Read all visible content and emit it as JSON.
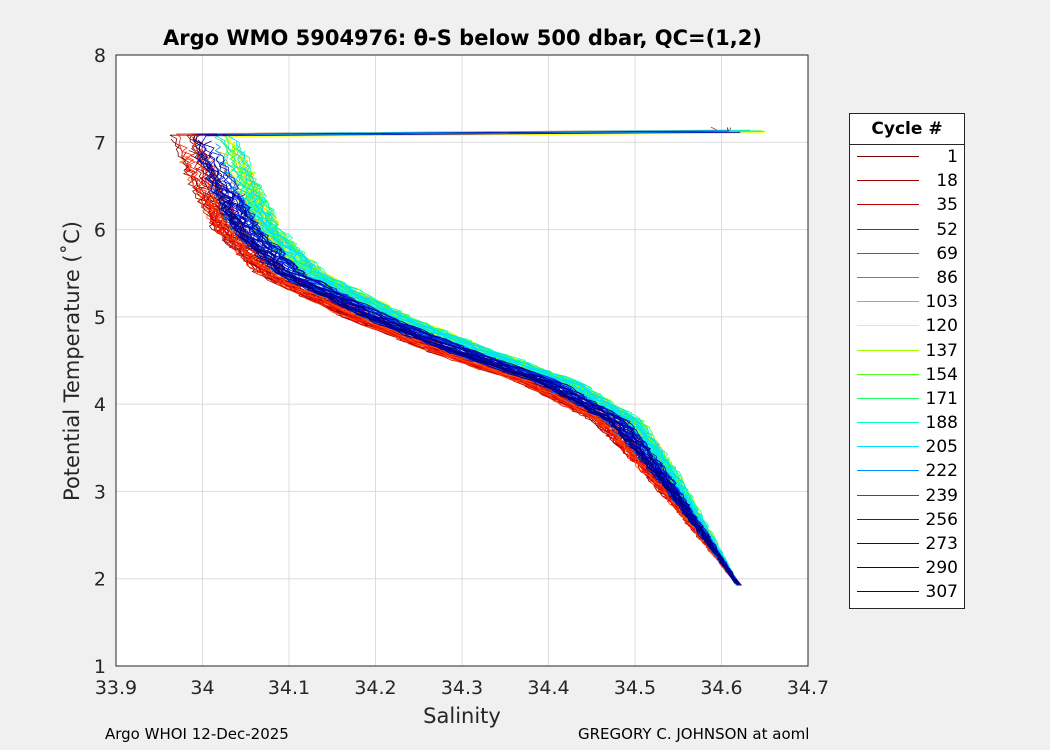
{
  "chart_data": {
    "type": "line",
    "title": "Argo WMO 5904976: θ-S below 500 dbar,  QC=(1,2)",
    "xlabel": "Salinity",
    "ylabel": "Potential Temperature (˚C)",
    "xlim": [
      33.9,
      34.7
    ],
    "ylim": [
      1,
      8
    ],
    "xticks": [
      "33.9",
      "34",
      "34.1",
      "34.2",
      "34.3",
      "34.4",
      "34.5",
      "34.6",
      "34.7"
    ],
    "yticks": [
      "1",
      "2",
      "3",
      "4",
      "5",
      "6",
      "7",
      "8"
    ],
    "grid": true,
    "legend": {
      "title": "Cycle #",
      "placement": "right"
    },
    "series": [
      {
        "name": "1",
        "color": "#800000"
      },
      {
        "name": "18",
        "color": "#a00000"
      },
      {
        "name": "35",
        "color": "#c00000"
      },
      {
        "name": "52",
        "color": "#e00000"
      },
      {
        "name": "69",
        "color": "#ff2000"
      },
      {
        "name": "86",
        "color": "#ff5000"
      },
      {
        "name": "103",
        "color": "#ff9000"
      },
      {
        "name": "120",
        "color": "#ffff00"
      },
      {
        "name": "137",
        "color": "#a0ff00"
      },
      {
        "name": "154",
        "color": "#50ff20"
      },
      {
        "name": "171",
        "color": "#20ff60"
      },
      {
        "name": "188",
        "color": "#00ffc0"
      },
      {
        "name": "205",
        "color": "#00e0ff"
      },
      {
        "name": "222",
        "color": "#0090ff"
      },
      {
        "name": "239",
        "color": "#0050ff"
      },
      {
        "name": "256",
        "color": "#0020e0"
      },
      {
        "name": "273",
        "color": "#0000c0"
      },
      {
        "name": "290",
        "color": "#0000a0"
      },
      {
        "name": "307",
        "color": "#000080"
      }
    ],
    "mean_profile": {
      "salinity": [
        34.0,
        34.02,
        34.05,
        34.1,
        34.2,
        34.3,
        34.4,
        34.48,
        34.53,
        34.58,
        34.62
      ],
      "temperature": [
        7.1,
        6.6,
        6.0,
        5.5,
        5.0,
        4.6,
        4.25,
        3.8,
        3.2,
        2.5,
        1.92
      ]
    }
  },
  "footer": {
    "left": "Argo WHOI 12-Dec-2025",
    "right": "GREGORY C. JOHNSON at aoml"
  }
}
